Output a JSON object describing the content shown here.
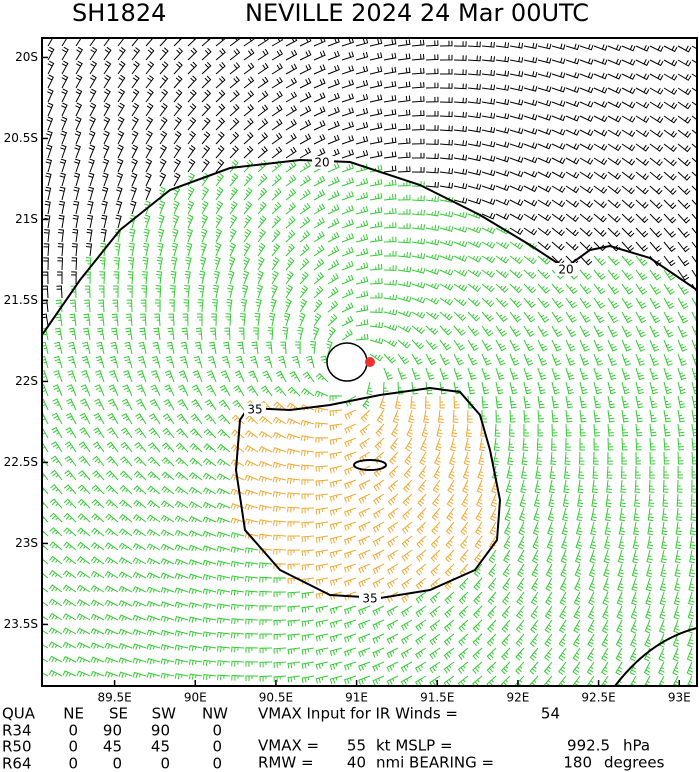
{
  "header": {
    "storm_id": "SH1824",
    "title": "NEVILLE 2024 24 Mar 00UTC"
  },
  "map": {
    "xlim": [
      89.05,
      93.11
    ],
    "ylim": [
      -23.88,
      -19.88
    ],
    "xticks": [
      {
        "value": 89.5,
        "label": "89.5E"
      },
      {
        "value": 90,
        "label": "90E"
      },
      {
        "value": 90.5,
        "label": "90.5E"
      },
      {
        "value": 91,
        "label": "91E"
      },
      {
        "value": 91.5,
        "label": "91.5E"
      },
      {
        "value": 92,
        "label": "92E"
      },
      {
        "value": 92.5,
        "label": "92.5E"
      },
      {
        "value": 93,
        "label": "93E"
      }
    ],
    "yticks": [
      {
        "value": -20,
        "label": "20S"
      },
      {
        "value": -20.5,
        "label": "20.5S"
      },
      {
        "value": -21,
        "label": "21S"
      },
      {
        "value": -21.5,
        "label": "21.5S"
      },
      {
        "value": -22,
        "label": "22S"
      },
      {
        "value": -22.5,
        "label": "22.5S"
      },
      {
        "value": -23,
        "label": "23S"
      },
      {
        "value": -23.5,
        "label": "23.5S"
      }
    ],
    "contours": [
      {
        "level": 20
      },
      {
        "level": 35
      }
    ]
  },
  "radii_table": {
    "columns": [
      "QUA",
      "NE",
      "SE",
      "SW",
      "NW"
    ],
    "rows": [
      [
        "R34",
        0,
        90,
        90,
        0
      ],
      [
        "R50",
        0,
        45,
        45,
        0
      ],
      [
        "R64",
        0,
        0,
        0,
        0
      ]
    ]
  },
  "info": {
    "vmax_ir_label": "VMAX Input for IR Winds =",
    "vmax_ir": 54,
    "vmax_label": "VMAX =",
    "vmax": 55,
    "mslp_label": "kt MSLP =",
    "mslp": 992.5,
    "mslp_unit": "hPa",
    "rmw_label": "RMW =",
    "rmw": 40,
    "bearing_label": "nmi BEARING =",
    "bearing": 180,
    "bearing_unit": "degrees"
  }
}
